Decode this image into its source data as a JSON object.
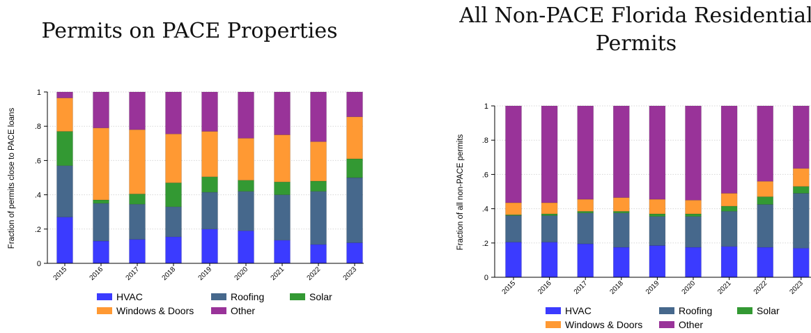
{
  "chart_data": [
    {
      "type": "bar",
      "stacked": true,
      "title": "Permits on PACE Properties",
      "ylabel": "Fraction of permits close to PACE loans",
      "categories": [
        "2015",
        "2016",
        "2017",
        "2018",
        "2019",
        "2020",
        "2021",
        "2022",
        "2023"
      ],
      "ylim": [
        0,
        1
      ],
      "yticks": [
        "0",
        ".2",
        ".4",
        ".6",
        ".8",
        "1"
      ],
      "grid": true,
      "legend": "bottom",
      "series": [
        {
          "name": "HVAC",
          "color": "#3b3bff",
          "values": [
            0.27,
            0.13,
            0.14,
            0.155,
            0.2,
            0.19,
            0.135,
            0.11,
            0.12
          ]
        },
        {
          "name": "Roofing",
          "color": "#46688c",
          "values": [
            0.3,
            0.22,
            0.205,
            0.175,
            0.215,
            0.23,
            0.265,
            0.31,
            0.38
          ]
        },
        {
          "name": "Solar",
          "color": "#339933",
          "values": [
            0.2,
            0.02,
            0.06,
            0.14,
            0.09,
            0.065,
            0.075,
            0.06,
            0.11
          ]
        },
        {
          "name": "Windows & Doors",
          "color": "#ff9933",
          "values": [
            0.195,
            0.42,
            0.375,
            0.285,
            0.265,
            0.245,
            0.275,
            0.23,
            0.245
          ]
        },
        {
          "name": "Other",
          "color": "#993399",
          "values": [
            0.035,
            0.21,
            0.22,
            0.245,
            0.23,
            0.27,
            0.25,
            0.29,
            0.145
          ]
        }
      ]
    },
    {
      "type": "bar",
      "stacked": true,
      "title": "All Non-PACE Florida Residential Permits",
      "ylabel": "Fraction of all non-PACE permits",
      "categories": [
        "2015",
        "2016",
        "2017",
        "2018",
        "2019",
        "2020",
        "2021",
        "2022",
        "2023"
      ],
      "ylim": [
        0,
        1
      ],
      "yticks": [
        "0",
        ".2",
        ".4",
        ".6",
        ".8",
        "1"
      ],
      "grid": true,
      "legend": "bottom",
      "series": [
        {
          "name": "HVAC",
          "color": "#3b3bff",
          "values": [
            0.205,
            0.205,
            0.195,
            0.175,
            0.185,
            0.175,
            0.18,
            0.175,
            0.17
          ]
        },
        {
          "name": "Roofing",
          "color": "#46688c",
          "values": [
            0.155,
            0.155,
            0.18,
            0.2,
            0.17,
            0.18,
            0.205,
            0.25,
            0.32
          ]
        },
        {
          "name": "Solar",
          "color": "#339933",
          "values": [
            0.005,
            0.01,
            0.01,
            0.01,
            0.015,
            0.015,
            0.03,
            0.045,
            0.04
          ]
        },
        {
          "name": "Windows & Doors",
          "color": "#ff9933",
          "values": [
            0.07,
            0.065,
            0.07,
            0.08,
            0.085,
            0.08,
            0.075,
            0.09,
            0.105
          ]
        },
        {
          "name": "Other",
          "color": "#993399",
          "values": [
            0.565,
            0.565,
            0.545,
            0.535,
            0.545,
            0.55,
            0.51,
            0.44,
            0.365
          ]
        }
      ]
    }
  ],
  "legend_order": [
    "HVAC",
    "Roofing",
    "Solar",
    "Windows & Doors",
    "Other"
  ]
}
